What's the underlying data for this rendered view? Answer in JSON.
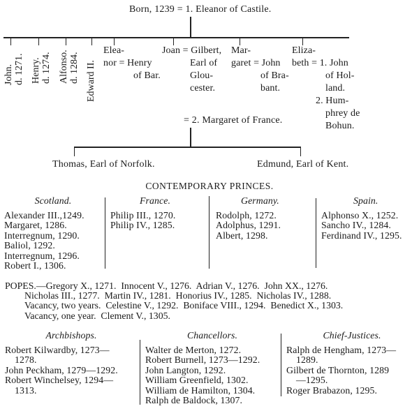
{
  "genealogy": {
    "first_marriage": "Born, 1239 = 1. Eleanor of Castile.",
    "children_first": [
      {
        "line1": "John.",
        "line2": "d. 1271."
      },
      {
        "line1": "Henry.",
        "line2": "d. 1274."
      },
      {
        "line1": "Alfonso.",
        "line2": "d. 1284."
      },
      {
        "line1": "Edward II.",
        "line2": ""
      }
    ],
    "eleanor": [
      "Elea-",
      "nor = Henry",
      "of Bar."
    ],
    "joan": [
      "Joan = Gilbert,",
      "Earl of",
      "Glou-",
      "cester."
    ],
    "margaret": [
      "Mar-",
      "garet = John",
      "of Bra-",
      "bant."
    ],
    "elizabeth": [
      "Eliza-",
      "beth = 1. John",
      "of Hol-",
      "land.",
      "2. Hum-",
      "phrey de",
      "Bohun."
    ],
    "second_marriage": "= 2. Margaret of France.",
    "children_second": [
      "Thomas, Earl of Norfolk.",
      "Edmund, Earl of Kent."
    ]
  },
  "princes": {
    "title": "CONTEMPORARY PRINCES.",
    "columns": [
      {
        "heading": "Scotland.",
        "items": [
          "Alexander III.,1249.",
          "Margaret, 1286.",
          "Interregnum, 1290.",
          "Baliol, 1292.",
          "Interregnum, 1296.",
          "Robert I., 1306."
        ]
      },
      {
        "heading": "France.",
        "items": [
          "Philip III., 1270.",
          "Philip IV., 1285."
        ]
      },
      {
        "heading": "Germany.",
        "items": [
          "Rodolph, 1272.",
          "Adolphus, 1291.",
          "Albert, 1298."
        ]
      },
      {
        "heading": "Spain.",
        "items": [
          "Alphonso X., 1252.",
          "Sancho IV., 1284.",
          "Ferdinand IV., 1295."
        ]
      }
    ]
  },
  "popes": {
    "lines": [
      "POPES.—Gregory X., 1271.  Innocent V., 1276.  Adrian V., 1276.  John XX., 1276.",
      "Nicholas III., 1277.  Martin IV., 1281.  Honorius IV., 1285.  Nicholas IV., 1288.",
      "Vacancy, two years.  Celestine V., 1292.  Boniface VIII., 1294.  Benedict X., 1303.",
      "Vacancy, one year.  Clement V., 1305."
    ]
  },
  "officials": {
    "columns": [
      {
        "heading": "Archbishops.",
        "items": [
          [
            "Robert Kilwardby, 1273—",
            "1278."
          ],
          [
            "John Peckham, 1279—1292."
          ],
          [
            "Robert Winchelsey, 1294—",
            "1313."
          ]
        ]
      },
      {
        "heading": "Chancellors.",
        "items": [
          [
            "Walter de Merton, 1272."
          ],
          [
            "Robert Burnell, 1273—1292."
          ],
          [
            "John Langton, 1292."
          ],
          [
            "William Greenfield, 1302."
          ],
          [
            "William de Hamilton, 1304."
          ],
          [
            "Ralph de Baldock, 1307."
          ]
        ]
      },
      {
        "heading": "Chief-Justices.",
        "items": [
          [
            "Ralph de Hengham, 1273—",
            "1289."
          ],
          [
            "Gilbert de Thornton, 1289",
            "—1295."
          ],
          [
            "Roger Brabazon, 1295."
          ]
        ]
      }
    ]
  }
}
